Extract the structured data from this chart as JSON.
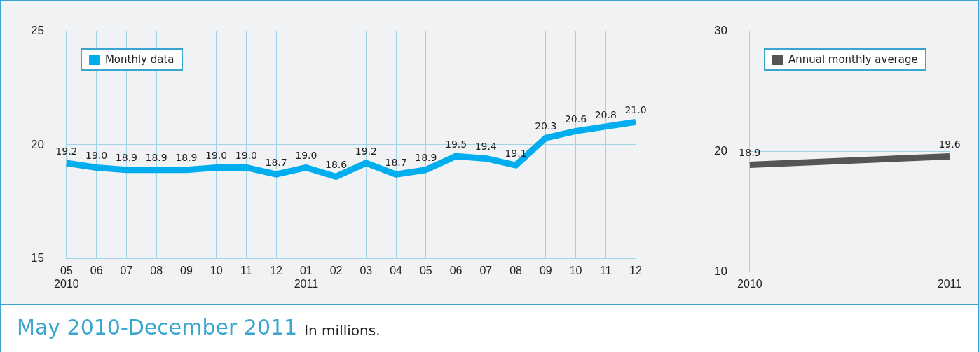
{
  "chart_data": [
    {
      "type": "line",
      "categories": [
        "05\n2010",
        "06",
        "07",
        "08",
        "09",
        "10",
        "11",
        "12",
        "01\n2011",
        "02",
        "03",
        "04",
        "05",
        "06",
        "07",
        "08",
        "09",
        "10",
        "11",
        "12"
      ],
      "series": [
        {
          "name": "Monthly data",
          "color": "#00aeef",
          "values": [
            19.2,
            19.0,
            18.9,
            18.9,
            18.9,
            19.0,
            19.0,
            18.7,
            19.0,
            18.6,
            19.2,
            18.7,
            18.9,
            19.5,
            19.4,
            19.1,
            20.3,
            20.6,
            20.8,
            21.0
          ],
          "value_labels": [
            "19.2",
            "19.0",
            "18.9",
            "18.9",
            "18.9",
            "19.0",
            "19.0",
            "18.7",
            "19.0",
            "18.6",
            "19.2",
            "18.7",
            "18.9",
            "19.5",
            "19.4",
            "19.1",
            "20.3",
            "20.6",
            "20.8",
            "21.0"
          ]
        }
      ],
      "ylim": [
        15,
        25
      ],
      "yticks": [
        15,
        20,
        25
      ],
      "grid": true,
      "legend": "top left",
      "marker": "none",
      "line_style": "solid",
      "annotations": [
        "May 2010-December 2011",
        "In millions."
      ]
    },
    {
      "type": "line",
      "categories": [
        "2010",
        "2011"
      ],
      "series": [
        {
          "name": "Annual monthly average",
          "color": "#555555",
          "values": [
            18.9,
            19.6
          ],
          "value_labels": [
            "18.9",
            "19.6"
          ]
        }
      ],
      "ylim": [
        10,
        30
      ],
      "yticks": [
        10,
        20,
        30
      ],
      "grid": true,
      "legend": "top left",
      "marker": "none",
      "line_style": "solid"
    }
  ]
}
